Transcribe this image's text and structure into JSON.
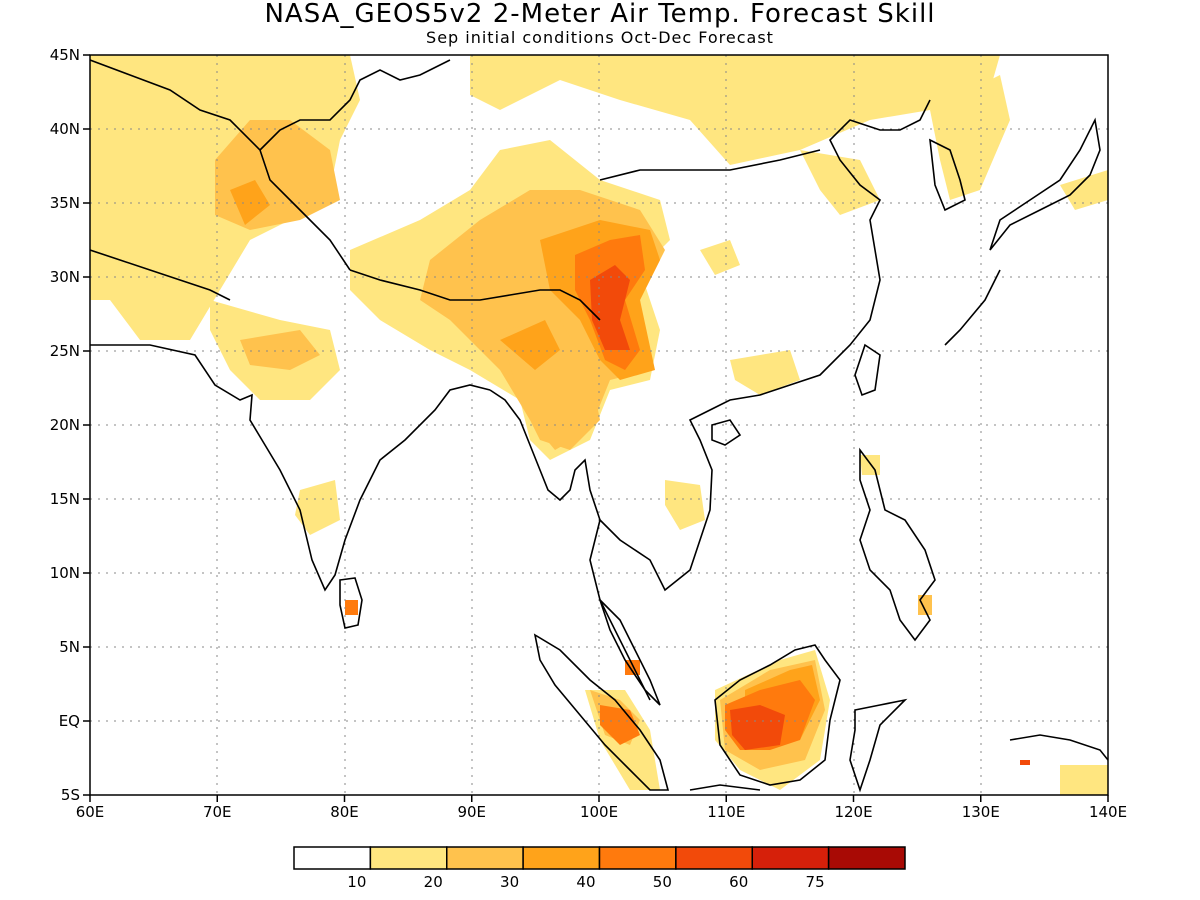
{
  "header": {
    "title": "NASA_GEOS5v2 2-Meter Air Temp. Forecast Skill",
    "subtitle": "Sep initial conditions  Oct-Dec Forecast"
  },
  "axes": {
    "x_ticks": [
      "60E",
      "70E",
      "80E",
      "90E",
      "100E",
      "110E",
      "120E",
      "130E",
      "140E"
    ],
    "y_ticks": [
      "45N",
      "40N",
      "35N",
      "30N",
      "25N",
      "20N",
      "15N",
      "10N",
      "5N",
      "EQ",
      "5S"
    ]
  },
  "colorbar": {
    "labels": [
      "10",
      "20",
      "30",
      "40",
      "50",
      "60",
      "75"
    ],
    "colors": [
      "#ffffff",
      "#ffe680",
      "#ffc24d",
      "#ffa31a",
      "#ff7a0d",
      "#f24a0a",
      "#d6200a",
      "#a80a05"
    ]
  },
  "regions": [
    {
      "name": "central-asia-skill",
      "level": 1
    },
    {
      "name": "pakistan-skill",
      "level": 2
    },
    {
      "name": "india-skill",
      "level": 2
    },
    {
      "name": "mongolia-skill",
      "level": 1
    },
    {
      "name": "tibet-skill",
      "level": 2
    },
    {
      "name": "yunnan-skill",
      "level": 4
    },
    {
      "name": "myanmar-skill",
      "level": 2
    },
    {
      "name": "borneo-skill",
      "level": 5
    },
    {
      "name": "sumatra-skill",
      "level": 4
    },
    {
      "name": "korea-japan-skill",
      "level": 1
    },
    {
      "name": "sri-lanka-skill",
      "level": 4
    }
  ]
}
